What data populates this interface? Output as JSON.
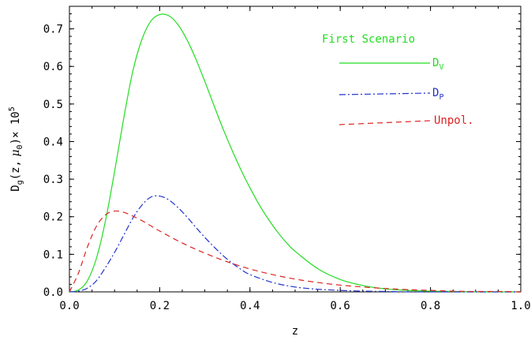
{
  "chart_data": {
    "type": "line",
    "title": "",
    "xlabel": "z",
    "ylabel": "D_g(z, μ_0) × 10^5",
    "xlim": [
      0.0,
      1.0
    ],
    "ylim": [
      0.0,
      0.75
    ],
    "x_ticks": [
      "0.0",
      "0.2",
      "0.4",
      "0.6",
      "0.8",
      "1.0"
    ],
    "y_ticks": [
      "0.0",
      "0.1",
      "0.2",
      "0.3",
      "0.4",
      "0.5",
      "0.6",
      "0.7"
    ],
    "legend": {
      "title": "First Scenario",
      "position": "top-right"
    },
    "series": [
      {
        "name": "D_V",
        "color": "#22dd22",
        "style": "solid",
        "x": [
          0.0,
          0.02,
          0.04,
          0.06,
          0.08,
          0.1,
          0.12,
          0.14,
          0.16,
          0.18,
          0.2,
          0.22,
          0.24,
          0.26,
          0.28,
          0.3,
          0.32,
          0.34,
          0.36,
          0.38,
          0.4,
          0.42,
          0.44,
          0.46,
          0.48,
          0.5,
          0.55,
          0.6,
          0.65,
          0.7,
          0.75,
          0.8,
          0.85,
          0.9,
          0.95,
          1.0
        ],
        "y": [
          0.0,
          0.005,
          0.03,
          0.09,
          0.19,
          0.32,
          0.46,
          0.585,
          0.67,
          0.72,
          0.738,
          0.735,
          0.712,
          0.672,
          0.62,
          0.56,
          0.497,
          0.435,
          0.378,
          0.325,
          0.277,
          0.233,
          0.195,
          0.161,
          0.132,
          0.108,
          0.062,
          0.033,
          0.017,
          0.008,
          0.004,
          0.002,
          0.001,
          0.0,
          0.0,
          0.0
        ]
      },
      {
        "name": "D_P",
        "color": "#2233cc",
        "style": "dashdot",
        "x": [
          0.0,
          0.02,
          0.04,
          0.06,
          0.08,
          0.1,
          0.12,
          0.14,
          0.16,
          0.18,
          0.2,
          0.22,
          0.24,
          0.26,
          0.28,
          0.3,
          0.32,
          0.34,
          0.36,
          0.38,
          0.4,
          0.45,
          0.5,
          0.55,
          0.6,
          0.65,
          0.7,
          0.75,
          0.8,
          0.85,
          0.9,
          0.95,
          1.0
        ],
        "y": [
          0.0,
          0.002,
          0.01,
          0.03,
          0.065,
          0.105,
          0.15,
          0.195,
          0.23,
          0.252,
          0.255,
          0.245,
          0.225,
          0.2,
          0.172,
          0.145,
          0.12,
          0.097,
          0.077,
          0.06,
          0.046,
          0.025,
          0.013,
          0.007,
          0.004,
          0.002,
          0.001,
          0.0,
          0.0,
          0.0,
          0.0,
          0.0,
          0.0
        ]
      },
      {
        "name": "Unpol.",
        "color": "#dd2222",
        "style": "dashed",
        "x": [
          0.0,
          0.02,
          0.04,
          0.06,
          0.08,
          0.1,
          0.12,
          0.14,
          0.16,
          0.18,
          0.2,
          0.25,
          0.3,
          0.35,
          0.4,
          0.45,
          0.5,
          0.55,
          0.6,
          0.65,
          0.7,
          0.75,
          0.8,
          0.85,
          0.9,
          0.95,
          1.0
        ],
        "y": [
          0.0,
          0.05,
          0.12,
          0.175,
          0.205,
          0.215,
          0.212,
          0.202,
          0.19,
          0.176,
          0.162,
          0.13,
          0.103,
          0.08,
          0.061,
          0.046,
          0.034,
          0.025,
          0.018,
          0.013,
          0.009,
          0.006,
          0.004,
          0.002,
          0.001,
          0.001,
          0.0
        ]
      }
    ]
  }
}
